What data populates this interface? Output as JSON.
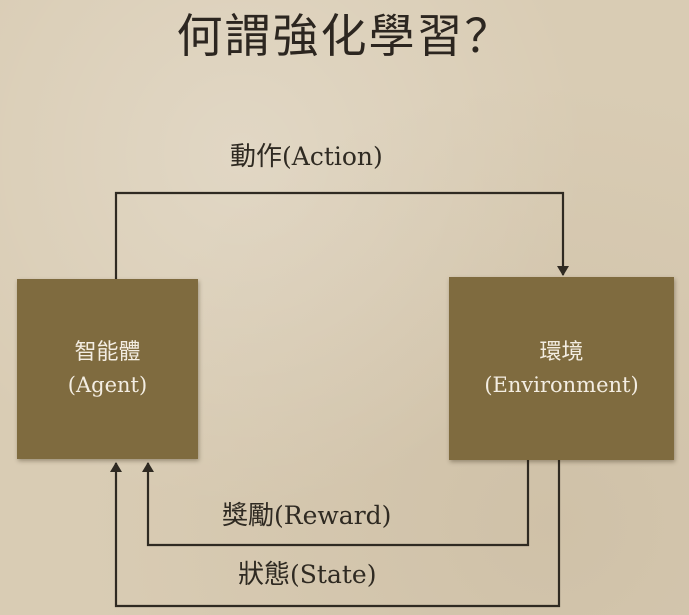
{
  "title": "何謂強化學習？",
  "agent": {
    "name_zh": "智能體",
    "name_en": "(Agent)"
  },
  "environment": {
    "name_zh": "環境",
    "name_en": "(Environment)"
  },
  "edges": {
    "action": {
      "label_zh": "動作",
      "label_en": "(Action)"
    },
    "reward": {
      "label_zh": "獎勵",
      "label_en": "(Reward)"
    },
    "state": {
      "label_zh": "狀態",
      "label_en": "(State)"
    }
  },
  "colors": {
    "background": "#d9ccb4",
    "box_fill": "#7f6b3f",
    "box_text": "#f3ede2",
    "line": "#2f2a22"
  }
}
